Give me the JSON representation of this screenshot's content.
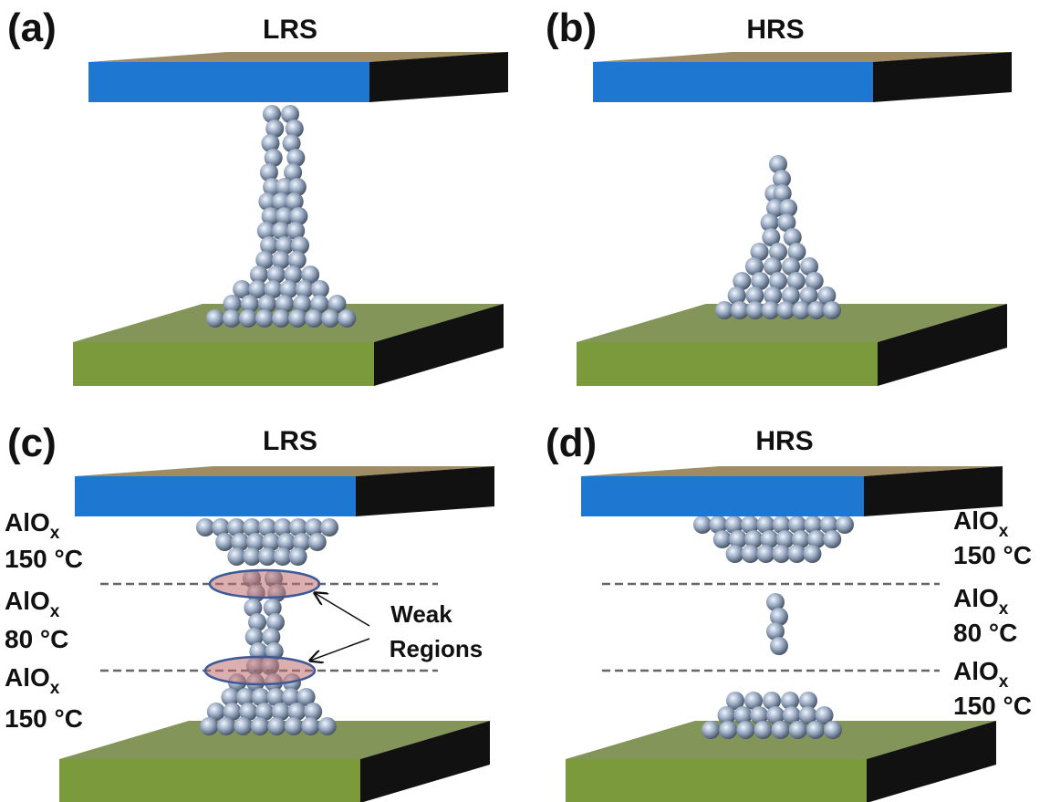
{
  "panels": [
    {
      "label": "(a)",
      "title": "LRS"
    },
    {
      "label": "(b)",
      "title": "HRS"
    },
    {
      "label": "(c)",
      "title": "LRS",
      "layers": [
        {
          "material": "AlO",
          "subscript": "x",
          "temperature": "150 °C"
        },
        {
          "material": "AlO",
          "subscript": "x",
          "temperature": "80 °C"
        },
        {
          "material": "AlO",
          "subscript": "x",
          "temperature": "150 °C"
        }
      ],
      "annotation": [
        "Weak",
        "Regions"
      ]
    },
    {
      "label": "(d)",
      "title": "HRS",
      "layers": [
        {
          "material": "AlO",
          "subscript": "x",
          "temperature": "150 °C"
        },
        {
          "material": "AlO",
          "subscript": "x",
          "temperature": "80 °C"
        },
        {
          "material": "AlO",
          "subscript": "x",
          "temperature": "150 °C"
        }
      ]
    }
  ]
}
